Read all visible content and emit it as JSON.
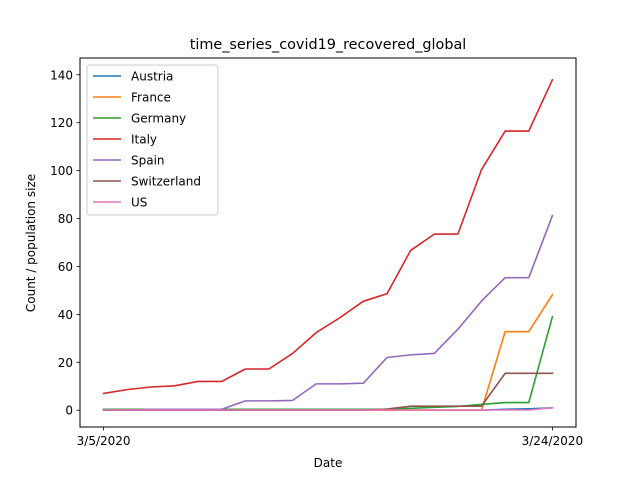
{
  "chart_data": {
    "type": "line",
    "title": "time_series_covid19_recovered_global",
    "xlabel": "Date",
    "ylabel": "Count / population size",
    "x_tick_labels": [
      "3/5/2020",
      "3/24/2020"
    ],
    "x_tick_index": [
      0,
      19
    ],
    "y_ticks": [
      0,
      20,
      40,
      60,
      80,
      100,
      120,
      140
    ],
    "xlim": [
      -1,
      20
    ],
    "ylim": [
      -7,
      147
    ],
    "legend_position": "top-left",
    "grid": false,
    "x": [
      0,
      1,
      2,
      3,
      4,
      5,
      6,
      7,
      8,
      9,
      10,
      11,
      12,
      13,
      14,
      15,
      16,
      17,
      18,
      19
    ],
    "series": [
      {
        "name": "Austria",
        "color": "#1f77b4",
        "values": [
          0,
          0,
          0,
          0,
          0,
          0,
          0,
          0,
          0,
          0,
          0,
          0,
          0,
          0,
          0,
          0,
          0,
          0.4,
          0.6,
          1.0
        ]
      },
      {
        "name": "France",
        "color": "#ff7f0e",
        "values": [
          0,
          0,
          0,
          0,
          0,
          0,
          0,
          0,
          0,
          0,
          0,
          0,
          0,
          0,
          0,
          0,
          0,
          32.8,
          32.8,
          48.2
        ]
      },
      {
        "name": "Germany",
        "color": "#2ca02c",
        "values": [
          0.4,
          0.4,
          0.4,
          0.4,
          0.4,
          0.4,
          0.4,
          0.4,
          0.4,
          0.4,
          0.4,
          0.4,
          0.4,
          0.8,
          1.2,
          1.6,
          2.4,
          3.2,
          3.2,
          39.0
        ]
      },
      {
        "name": "Italy",
        "color": "#d62728",
        "values": [
          7.0,
          8.6,
          9.7,
          10.2,
          12.0,
          12.0,
          17.2,
          17.2,
          23.7,
          32.4,
          38.6,
          45.5,
          48.6,
          66.7,
          73.5,
          73.5,
          100.4,
          116.5,
          116.5,
          137.9
        ]
      },
      {
        "name": "Spain",
        "color": "#9467bd",
        "values": [
          0,
          0,
          0.4,
          0.4,
          0.4,
          0.4,
          3.9,
          3.9,
          4.1,
          11.0,
          11.0,
          11.3,
          22.0,
          23.1,
          23.7,
          33.8,
          45.6,
          55.3,
          55.3,
          81.2
        ]
      },
      {
        "name": "Switzerland",
        "color": "#8c564b",
        "values": [
          0,
          0,
          0,
          0,
          0,
          0,
          0,
          0,
          0,
          0,
          0,
          0,
          0.5,
          1.7,
          1.7,
          1.7,
          1.7,
          15.4,
          15.4,
          15.4
        ]
      },
      {
        "name": "US",
        "color": "#e377c2",
        "values": [
          0.1,
          0.1,
          0.1,
          0.1,
          0.1,
          0.1,
          0.1,
          0.1,
          0.1,
          0.1,
          0.1,
          0.1,
          0.1,
          0.1,
          0.1,
          0.1,
          0.1,
          0.1,
          0.1,
          1.0
        ]
      }
    ]
  }
}
